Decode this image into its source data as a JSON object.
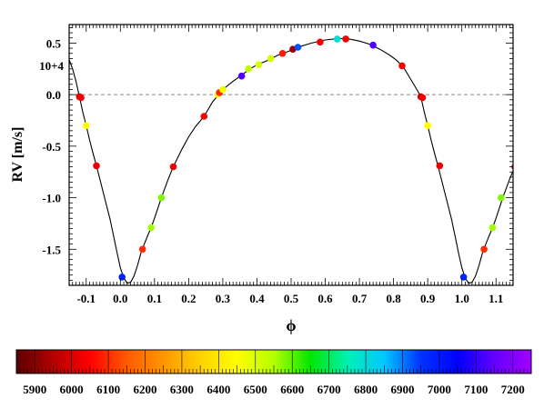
{
  "chart_data": [
    {
      "type": "scatter",
      "xlabel": "ϕ",
      "ylabel": "RV [m/s]",
      "y_multiplier_label": "10+4",
      "xlim": [
        -0.15,
        1.15
      ],
      "ylim": [
        -1.85,
        0.68
      ],
      "x_ticks": [
        -0.1,
        0.0,
        0.1,
        0.2,
        0.3,
        0.4,
        0.5,
        0.6,
        0.7,
        0.8,
        0.9,
        1.0,
        1.1
      ],
      "x_tick_labels": [
        "-0.1",
        "0.0",
        "0.1",
        "0.2",
        "0.3",
        "0.4",
        "0.5",
        "0.6",
        "0.7",
        "0.8",
        "0.9",
        "1.0",
        "1.1"
      ],
      "y_ticks": [
        -1.5,
        -1.0,
        -0.5,
        0.0,
        0.5
      ],
      "y_tick_labels": [
        "-1.5",
        "-1.0",
        "-0.5",
        "0.0",
        "0.5"
      ],
      "zero_line": true,
      "grid": false,
      "points": [
        {
          "x": -0.12,
          "y": -0.02,
          "t": 5990
        },
        {
          "x": -0.115,
          "y": -0.03,
          "t": 6030
        },
        {
          "x": -0.1,
          "y": -0.3,
          "t": 6440
        },
        {
          "x": -0.07,
          "y": -0.69,
          "t": 6020
        },
        {
          "x": 0.005,
          "y": -1.77,
          "t": 6980
        },
        {
          "x": 0.065,
          "y": -1.5,
          "t": 6100
        },
        {
          "x": 0.09,
          "y": -1.29,
          "t": 6560
        },
        {
          "x": 0.12,
          "y": -1.0,
          "t": 6580
        },
        {
          "x": 0.155,
          "y": -0.7,
          "t": 6030
        },
        {
          "x": 0.245,
          "y": -0.21,
          "t": 6050
        },
        {
          "x": 0.285,
          "y": 0.0,
          "t": 6450
        },
        {
          "x": 0.29,
          "y": 0.02,
          "t": 6090
        },
        {
          "x": 0.3,
          "y": 0.05,
          "t": 6470
        },
        {
          "x": 0.355,
          "y": 0.18,
          "t": 7130
        },
        {
          "x": 0.375,
          "y": 0.25,
          "t": 6530
        },
        {
          "x": 0.405,
          "y": 0.29,
          "t": 6500
        },
        {
          "x": 0.44,
          "y": 0.35,
          "t": 6510
        },
        {
          "x": 0.475,
          "y": 0.4,
          "t": 6080
        },
        {
          "x": 0.505,
          "y": 0.44,
          "t": 5920
        },
        {
          "x": 0.52,
          "y": 0.46,
          "t": 6930
        },
        {
          "x": 0.585,
          "y": 0.51,
          "t": 6040
        },
        {
          "x": 0.635,
          "y": 0.54,
          "t": 6790
        },
        {
          "x": 0.66,
          "y": 0.54,
          "t": 6030
        },
        {
          "x": 0.74,
          "y": 0.48,
          "t": 7130
        },
        {
          "x": 0.825,
          "y": 0.28,
          "t": 6040
        },
        {
          "x": 0.88,
          "y": -0.02,
          "t": 5990
        },
        {
          "x": 0.885,
          "y": -0.03,
          "t": 6030
        },
        {
          "x": 0.9,
          "y": -0.3,
          "t": 6440
        },
        {
          "x": 0.935,
          "y": -0.69,
          "t": 6020
        },
        {
          "x": 1.005,
          "y": -1.77,
          "t": 6980
        },
        {
          "x": 1.065,
          "y": -1.5,
          "t": 6100
        },
        {
          "x": 1.09,
          "y": -1.29,
          "t": 6560
        },
        {
          "x": 1.115,
          "y": -1.0,
          "t": 6580
        },
        {
          "x": 1.155,
          "y": -0.7,
          "t": 6030
        }
      ],
      "model_curve": [
        [
          -0.15,
          0.34
        ],
        [
          -0.14,
          0.25
        ],
        [
          -0.13,
          0.13
        ],
        [
          -0.12,
          -0.02
        ],
        [
          -0.11,
          -0.17
        ],
        [
          -0.1,
          -0.3
        ],
        [
          -0.09,
          -0.44
        ],
        [
          -0.08,
          -0.57
        ],
        [
          -0.07,
          -0.69
        ],
        [
          -0.06,
          -0.82
        ],
        [
          -0.05,
          -0.95
        ],
        [
          -0.04,
          -1.08
        ],
        [
          -0.03,
          -1.21
        ],
        [
          -0.02,
          -1.37
        ],
        [
          -0.01,
          -1.53
        ],
        [
          0.0,
          -1.68
        ],
        [
          0.01,
          -1.78
        ],
        [
          0.02,
          -1.83
        ],
        [
          0.03,
          -1.82
        ],
        [
          0.04,
          -1.76
        ],
        [
          0.05,
          -1.66
        ],
        [
          0.06,
          -1.54
        ],
        [
          0.07,
          -1.45
        ],
        [
          0.08,
          -1.37
        ],
        [
          0.09,
          -1.29
        ],
        [
          0.1,
          -1.2
        ],
        [
          0.12,
          -1.0
        ],
        [
          0.14,
          -0.82
        ],
        [
          0.155,
          -0.7
        ],
        [
          0.18,
          -0.53
        ],
        [
          0.2,
          -0.41
        ],
        [
          0.22,
          -0.31
        ],
        [
          0.245,
          -0.21
        ],
        [
          0.27,
          -0.07
        ],
        [
          0.3,
          0.05
        ],
        [
          0.33,
          0.13
        ],
        [
          0.355,
          0.19
        ],
        [
          0.38,
          0.25
        ],
        [
          0.4,
          0.29
        ],
        [
          0.43,
          0.33
        ],
        [
          0.46,
          0.38
        ],
        [
          0.5,
          0.43
        ],
        [
          0.53,
          0.47
        ],
        [
          0.56,
          0.5
        ],
        [
          0.6,
          0.53
        ],
        [
          0.64,
          0.545
        ],
        [
          0.67,
          0.54
        ],
        [
          0.7,
          0.52
        ],
        [
          0.73,
          0.49
        ],
        [
          0.76,
          0.44
        ],
        [
          0.79,
          0.38
        ],
        [
          0.81,
          0.33
        ],
        [
          0.83,
          0.26
        ],
        [
          0.85,
          0.15
        ],
        [
          0.87,
          0.04
        ],
        [
          0.88,
          -0.02
        ],
        [
          0.89,
          -0.17
        ],
        [
          0.9,
          -0.3
        ],
        [
          0.91,
          -0.44
        ],
        [
          0.92,
          -0.57
        ],
        [
          0.93,
          -0.69
        ],
        [
          0.94,
          -0.82
        ],
        [
          0.95,
          -0.95
        ],
        [
          0.96,
          -1.08
        ],
        [
          0.97,
          -1.21
        ],
        [
          0.98,
          -1.37
        ],
        [
          0.99,
          -1.53
        ],
        [
          1.0,
          -1.68
        ],
        [
          1.01,
          -1.78
        ],
        [
          1.02,
          -1.83
        ],
        [
          1.03,
          -1.82
        ],
        [
          1.04,
          -1.76
        ],
        [
          1.05,
          -1.66
        ],
        [
          1.06,
          -1.54
        ],
        [
          1.07,
          -1.45
        ],
        [
          1.08,
          -1.37
        ],
        [
          1.09,
          -1.29
        ],
        [
          1.1,
          -1.2
        ],
        [
          1.12,
          -1.0
        ],
        [
          1.14,
          -0.82
        ],
        [
          1.15,
          -0.74
        ]
      ]
    },
    {
      "type": "heatmap",
      "role": "colorbar",
      "range": [
        5850,
        7250
      ],
      "tick_values": [
        5900,
        6000,
        6100,
        6200,
        6300,
        6400,
        6500,
        6600,
        6700,
        6800,
        6900,
        7000,
        7100,
        7200
      ],
      "tick_labels": [
        "5900",
        "6000",
        "6100",
        "6200",
        "6300",
        "6400",
        "6500",
        "6600",
        "6700",
        "6800",
        "6900",
        "7000",
        "7100",
        "7200"
      ],
      "colormap": [
        "#5c0000",
        "#b30000",
        "#ff0000",
        "#ff5a00",
        "#ff9600",
        "#ffd200",
        "#ffff00",
        "#b4ff00",
        "#00e600",
        "#00f0b4",
        "#00c8ff",
        "#0032ff",
        "#0000ff",
        "#6400ff",
        "#a000ff"
      ]
    }
  ]
}
